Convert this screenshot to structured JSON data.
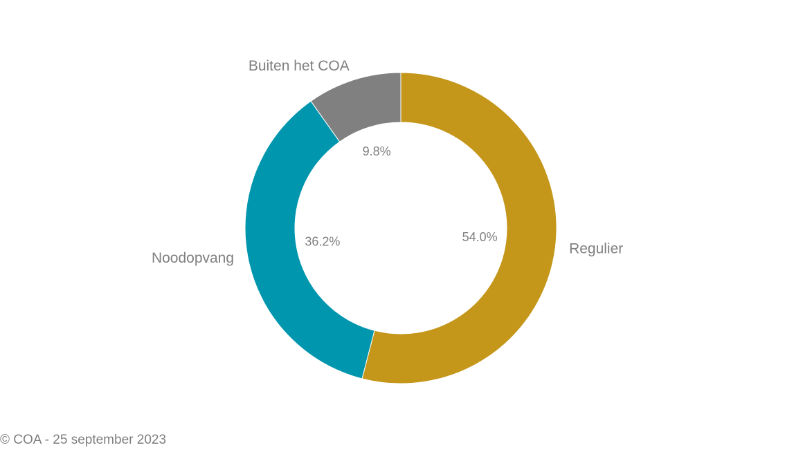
{
  "chart_data": {
    "type": "donut",
    "categories": [
      "Regulier",
      "Noodopvang",
      "Buiten het COA"
    ],
    "values": [
      54.0,
      36.2,
      9.8
    ],
    "value_labels": [
      "54.0%",
      "36.2%",
      "9.8%"
    ],
    "colors": [
      "#C4961A",
      "#0096AE",
      "#808080"
    ],
    "footer": "© COA - 25 september 2023"
  }
}
